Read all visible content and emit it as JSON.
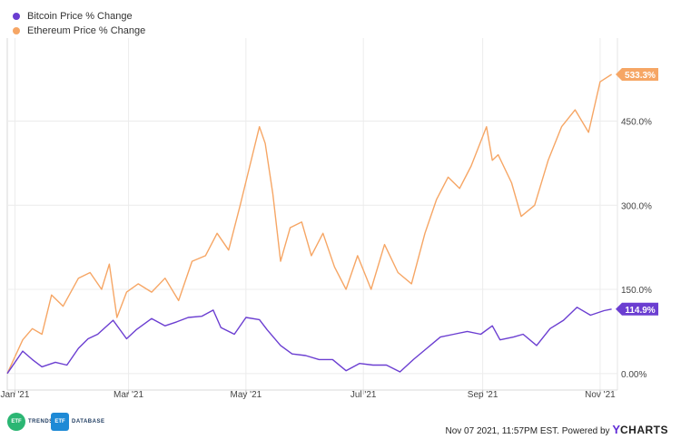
{
  "chart_data": {
    "type": "line",
    "series": [
      {
        "name": "Bitcoin Price % Change",
        "color": "#6b3ed1",
        "end_label": "114.9%",
        "x": [
          "2020-12-28",
          "2021-01-05",
          "2021-01-10",
          "2021-01-15",
          "2021-01-22",
          "2021-01-28",
          "2021-02-03",
          "2021-02-08",
          "2021-02-13",
          "2021-02-21",
          "2021-02-28",
          "2021-03-05",
          "2021-03-13",
          "2021-03-20",
          "2021-03-26",
          "2021-04-01",
          "2021-04-08",
          "2021-04-14",
          "2021-04-18",
          "2021-04-25",
          "2021-05-01",
          "2021-05-08",
          "2021-05-12",
          "2021-05-19",
          "2021-05-25",
          "2021-06-01",
          "2021-06-08",
          "2021-06-15",
          "2021-06-22",
          "2021-06-29",
          "2021-07-06",
          "2021-07-13",
          "2021-07-20",
          "2021-07-27",
          "2021-08-03",
          "2021-08-10",
          "2021-08-17",
          "2021-08-24",
          "2021-08-31",
          "2021-09-06",
          "2021-09-10",
          "2021-09-17",
          "2021-09-22",
          "2021-09-29",
          "2021-10-06",
          "2021-10-13",
          "2021-10-20",
          "2021-10-27",
          "2021-11-03",
          "2021-11-07"
        ],
        "values": [
          0,
          40,
          25,
          12,
          20,
          15,
          45,
          62,
          70,
          95,
          62,
          78,
          98,
          85,
          92,
          100,
          102,
          113,
          82,
          70,
          100,
          96,
          78,
          50,
          35,
          32,
          25,
          25,
          5,
          18,
          15,
          15,
          3,
          25,
          45,
          65,
          70,
          75,
          70,
          85,
          60,
          65,
          70,
          50,
          80,
          95,
          118,
          104,
          112,
          114.9
        ]
      },
      {
        "name": "Ethereum Price % Change",
        "color": "#f6a665",
        "end_label": "533.3%",
        "x": [
          "2020-12-28",
          "2021-01-05",
          "2021-01-10",
          "2021-01-15",
          "2021-01-20",
          "2021-01-26",
          "2021-02-03",
          "2021-02-09",
          "2021-02-15",
          "2021-02-19",
          "2021-02-23",
          "2021-02-28",
          "2021-03-06",
          "2021-03-13",
          "2021-03-20",
          "2021-03-27",
          "2021-04-03",
          "2021-04-10",
          "2021-04-16",
          "2021-04-22",
          "2021-04-28",
          "2021-05-03",
          "2021-05-08",
          "2021-05-11",
          "2021-05-15",
          "2021-05-19",
          "2021-05-24",
          "2021-05-30",
          "2021-06-04",
          "2021-06-10",
          "2021-06-16",
          "2021-06-22",
          "2021-06-28",
          "2021-07-05",
          "2021-07-12",
          "2021-07-19",
          "2021-07-26",
          "2021-08-02",
          "2021-08-08",
          "2021-08-14",
          "2021-08-20",
          "2021-08-26",
          "2021-09-03",
          "2021-09-06",
          "2021-09-09",
          "2021-09-16",
          "2021-09-21",
          "2021-09-28",
          "2021-10-05",
          "2021-10-12",
          "2021-10-19",
          "2021-10-26",
          "2021-11-01",
          "2021-11-07"
        ],
        "values": [
          0,
          60,
          80,
          70,
          140,
          120,
          170,
          180,
          150,
          195,
          100,
          145,
          160,
          145,
          170,
          130,
          200,
          210,
          250,
          220,
          300,
          370,
          440,
          410,
          320,
          200,
          260,
          270,
          210,
          250,
          190,
          150,
          210,
          150,
          230,
          180,
          160,
          250,
          310,
          350,
          330,
          370,
          440,
          380,
          390,
          340,
          280,
          300,
          380,
          440,
          470,
          430,
          520,
          533.3
        ]
      }
    ],
    "x_tick_labels": [
      "Jan '21",
      "Mar '21",
      "May '21",
      "Jul '21",
      "Sep '21",
      "Nov '21"
    ],
    "x_tick_dates": [
      "2021-01-01",
      "2021-03-01",
      "2021-05-01",
      "2021-07-01",
      "2021-09-01",
      "2021-11-01"
    ],
    "y_ticks": [
      0,
      150,
      300,
      450
    ],
    "y_tick_labels": [
      "0.00%",
      "150.0%",
      "300.0%",
      "450.0%"
    ],
    "ylim": [
      -10,
      585
    ],
    "xlim": [
      "2020-12-28",
      "2021-11-10"
    ],
    "grid": true,
    "legend_position": "top-left"
  },
  "footer": {
    "timestamp": "Nov 07 2021, 11:57PM EST.",
    "powered_by": "Powered by",
    "brand_letter": "Y",
    "brand_rest": "CHARTS",
    "logos": [
      {
        "mark": "ETF",
        "word": "TRENDS",
        "color": "#2bb673"
      },
      {
        "mark": "ETF",
        "word": "DATABASE",
        "color": "#1e8ad6"
      }
    ]
  }
}
